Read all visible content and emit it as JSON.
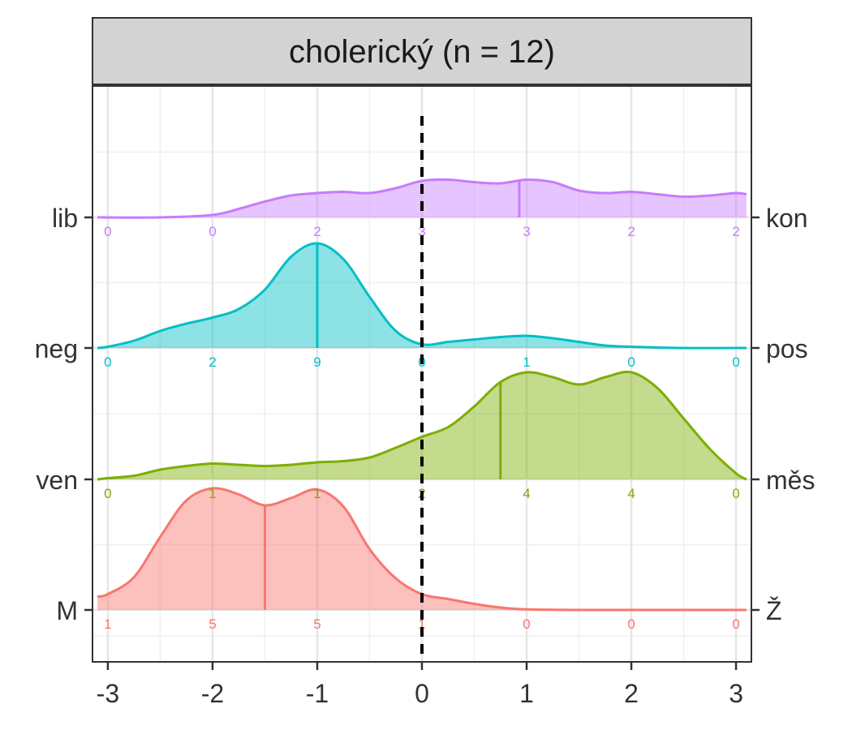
{
  "chart_data": {
    "type": "ridgeline",
    "title": "cholerický (n = 12)",
    "xlim": [
      -3.1,
      3.1
    ],
    "x_ticks": [
      -3,
      -2,
      -1,
      0,
      1,
      2,
      3
    ],
    "x_tick_labels": [
      "-3",
      "-2",
      "-1",
      "0",
      "1",
      "2",
      "3"
    ],
    "reference_line_x": 0,
    "grid": true,
    "count_positions": [
      -3,
      -2,
      -1,
      0,
      1,
      2,
      3
    ],
    "series": [
      {
        "left_label": "M",
        "right_label": "Ž",
        "color": "#F8766D",
        "median": -1.5,
        "counts": [
          1,
          5,
          5,
          1,
          0,
          0,
          0
        ],
        "density": [
          [
            -3.1,
            0.11
          ],
          [
            -3,
            0.13
          ],
          [
            -2.75,
            0.27
          ],
          [
            -2.5,
            0.6
          ],
          [
            -2.25,
            0.9
          ],
          [
            -2,
            1.0
          ],
          [
            -1.75,
            0.95
          ],
          [
            -1.5,
            0.86
          ],
          [
            -1.25,
            0.92
          ],
          [
            -1,
            0.99
          ],
          [
            -0.75,
            0.85
          ],
          [
            -0.5,
            0.5
          ],
          [
            -0.25,
            0.26
          ],
          [
            0,
            0.13
          ],
          [
            0.25,
            0.09
          ],
          [
            0.5,
            0.05
          ],
          [
            0.75,
            0.02
          ],
          [
            1,
            0.005
          ],
          [
            1.5,
            0.0
          ],
          [
            2,
            0.0
          ],
          [
            2.5,
            0.0
          ],
          [
            3.1,
            0.0
          ]
        ]
      },
      {
        "left_label": "ven",
        "right_label": "měs",
        "color": "#7CAE00",
        "median": 0.75,
        "counts": [
          0,
          1,
          1,
          2,
          4,
          4,
          0
        ],
        "density": [
          [
            -3.1,
            0.0
          ],
          [
            -3,
            0.01
          ],
          [
            -2.75,
            0.03
          ],
          [
            -2.5,
            0.08
          ],
          [
            -2.25,
            0.11
          ],
          [
            -2,
            0.13
          ],
          [
            -1.75,
            0.12
          ],
          [
            -1.5,
            0.11
          ],
          [
            -1.25,
            0.12
          ],
          [
            -1,
            0.14
          ],
          [
            -0.75,
            0.15
          ],
          [
            -0.5,
            0.18
          ],
          [
            -0.25,
            0.26
          ],
          [
            0,
            0.35
          ],
          [
            0.25,
            0.43
          ],
          [
            0.5,
            0.6
          ],
          [
            0.75,
            0.8
          ],
          [
            1,
            0.88
          ],
          [
            1.25,
            0.84
          ],
          [
            1.5,
            0.78
          ],
          [
            1.75,
            0.84
          ],
          [
            2,
            0.88
          ],
          [
            2.25,
            0.75
          ],
          [
            2.5,
            0.5
          ],
          [
            2.75,
            0.25
          ],
          [
            3,
            0.05
          ],
          [
            3.1,
            0.0
          ]
        ]
      },
      {
        "left_label": "neg",
        "right_label": "pos",
        "color": "#00BFC4",
        "median": -1.0,
        "counts": [
          0,
          2,
          9,
          0,
          1,
          0,
          0
        ],
        "density": [
          [
            -3.1,
            0.0
          ],
          [
            -3,
            0.01
          ],
          [
            -2.75,
            0.06
          ],
          [
            -2.5,
            0.14
          ],
          [
            -2.25,
            0.2
          ],
          [
            -2,
            0.25
          ],
          [
            -1.75,
            0.32
          ],
          [
            -1.5,
            0.48
          ],
          [
            -1.25,
            0.75
          ],
          [
            -1,
            0.86
          ],
          [
            -0.75,
            0.73
          ],
          [
            -0.5,
            0.42
          ],
          [
            -0.25,
            0.14
          ],
          [
            0,
            0.03
          ],
          [
            0.25,
            0.05
          ],
          [
            0.5,
            0.07
          ],
          [
            0.75,
            0.09
          ],
          [
            1,
            0.1
          ],
          [
            1.25,
            0.08
          ],
          [
            1.5,
            0.05
          ],
          [
            1.75,
            0.02
          ],
          [
            2,
            0.01
          ],
          [
            2.5,
            0.0
          ],
          [
            3.1,
            0.0
          ]
        ]
      },
      {
        "left_label": "lib",
        "right_label": "kon",
        "color": "#C77CFF",
        "median": 0.93,
        "counts": [
          0,
          0,
          2,
          3,
          3,
          2,
          2
        ],
        "density": [
          [
            -3.1,
            0.0
          ],
          [
            -2.5,
            0.0
          ],
          [
            -2,
            0.02
          ],
          [
            -1.75,
            0.07
          ],
          [
            -1.5,
            0.13
          ],
          [
            -1.25,
            0.18
          ],
          [
            -1,
            0.2
          ],
          [
            -0.75,
            0.21
          ],
          [
            -0.5,
            0.2
          ],
          [
            -0.25,
            0.24
          ],
          [
            0,
            0.3
          ],
          [
            0.25,
            0.31
          ],
          [
            0.5,
            0.29
          ],
          [
            0.75,
            0.28
          ],
          [
            1,
            0.31
          ],
          [
            1.25,
            0.29
          ],
          [
            1.5,
            0.22
          ],
          [
            1.75,
            0.2
          ],
          [
            2,
            0.21
          ],
          [
            2.25,
            0.19
          ],
          [
            2.5,
            0.17
          ],
          [
            2.75,
            0.18
          ],
          [
            3,
            0.2
          ],
          [
            3.1,
            0.19
          ]
        ]
      }
    ]
  }
}
